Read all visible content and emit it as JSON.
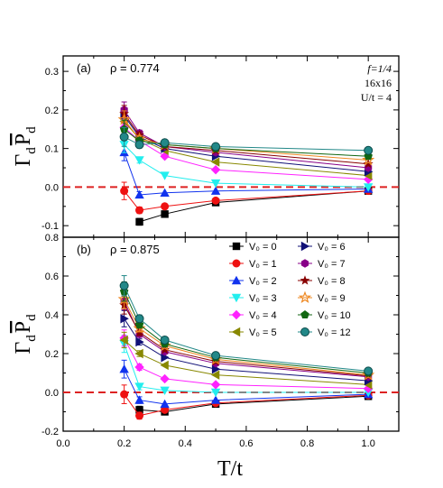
{
  "chart_data": {
    "type": "line",
    "xlabel": "T/t",
    "ylabel": "Γ_d P̄_d",
    "ylabel_main": "Γ",
    "ylabel_sub": "d",
    "ylabel_P": "P",
    "xlim": [
      0.0,
      1.1
    ],
    "x_ticks": [
      "0.0",
      "0.2",
      "0.4",
      "0.6",
      "0.8",
      "1.0"
    ],
    "x": [
      0.2,
      0.25,
      0.333,
      0.5,
      1.0
    ],
    "zero_line_color": "#dd2222",
    "legend_placement": "top-right of panel (b)",
    "legend": [
      {
        "label": "V₀ = 0",
        "marker": "square",
        "color": "#000000"
      },
      {
        "label": "V₀ = 1",
        "marker": "circle",
        "color": "#ee1111"
      },
      {
        "label": "V₀ = 2",
        "marker": "triangle-up",
        "color": "#1133ee"
      },
      {
        "label": "V₀ = 3",
        "marker": "triangle-down",
        "color": "#22eeee"
      },
      {
        "label": "V₀ = 4",
        "marker": "diamond",
        "color": "#ff22ff"
      },
      {
        "label": "V₀ = 5",
        "marker": "triangle-left",
        "color": "#888800"
      },
      {
        "label": "V₀ = 6",
        "marker": "triangle-right",
        "color": "#111177"
      },
      {
        "label": "V₀ = 7",
        "marker": "hexagon",
        "color": "#880088"
      },
      {
        "label": "V₀ = 8",
        "marker": "star",
        "color": "#880000"
      },
      {
        "label": "V₀ = 9",
        "marker": "star-open",
        "color": "#ee8822"
      },
      {
        "label": "V₀ = 10",
        "marker": "pentagon",
        "color": "#116611"
      },
      {
        "label": "V₀ = 12",
        "marker": "circle-half",
        "color": "#228888"
      }
    ],
    "panels": [
      {
        "label": "(a)",
        "rho_text": "ρ = 0.774",
        "notes": [
          "f=1/4",
          "16x16",
          "U/t = 4"
        ],
        "ylim": [
          -0.13,
          0.34
        ],
        "y_ticks": [
          "-0.1",
          "0.0",
          "0.1",
          "0.2",
          "0.3"
        ],
        "y_tick_values": [
          -0.1,
          0.0,
          0.1,
          0.2,
          0.3
        ],
        "series": [
          {
            "values": [
              null,
              -0.09,
              -0.07,
              -0.04,
              -0.01
            ]
          },
          {
            "values": [
              -0.01,
              -0.06,
              -0.05,
              -0.035,
              -0.01
            ]
          },
          {
            "values": [
              0.09,
              -0.02,
              -0.015,
              -0.01,
              -0.005
            ]
          },
          {
            "values": [
              0.11,
              0.07,
              0.03,
              0.01,
              0.0
            ]
          },
          {
            "values": [
              0.155,
              0.12,
              0.08,
              0.045,
              0.02
            ]
          },
          {
            "values": [
              0.17,
              0.125,
              0.095,
              0.065,
              0.03
            ]
          },
          {
            "values": [
              0.185,
              0.13,
              0.1,
              0.08,
              0.04
            ]
          },
          {
            "values": [
              0.2,
              0.14,
              0.105,
              0.09,
              0.05
            ]
          },
          {
            "values": [
              0.19,
              0.135,
              0.105,
              0.095,
              0.06
            ]
          },
          {
            "values": [
              0.175,
              0.125,
              0.11,
              0.1,
              0.07
            ]
          },
          {
            "values": [
              0.15,
              0.12,
              0.11,
              0.1,
              0.08
            ]
          },
          {
            "values": [
              0.13,
              0.11,
              0.115,
              0.105,
              0.095
            ]
          }
        ]
      },
      {
        "label": "(b)",
        "rho_text": "ρ = 0.875",
        "notes": [],
        "ylim": [
          -0.2,
          0.8
        ],
        "y_ticks": [
          "-0.2",
          "0.0",
          "0.2",
          "0.4",
          "0.6",
          "0.8"
        ],
        "y_tick_values": [
          -0.2,
          0.0,
          0.2,
          0.4,
          0.6,
          0.8
        ],
        "series": [
          {
            "values": [
              null,
              -0.09,
              -0.1,
              -0.06,
              -0.02
            ]
          },
          {
            "values": [
              -0.01,
              -0.12,
              -0.09,
              -0.055,
              -0.015
            ]
          },
          {
            "values": [
              0.12,
              -0.04,
              -0.06,
              -0.04,
              -0.01
            ]
          },
          {
            "values": [
              0.25,
              0.03,
              0.01,
              0.0,
              0.0
            ]
          },
          {
            "values": [
              0.28,
              0.13,
              0.07,
              0.04,
              0.02
            ]
          },
          {
            "values": [
              0.27,
              0.2,
              0.14,
              0.09,
              0.04
            ]
          },
          {
            "values": [
              0.38,
              0.26,
              0.18,
              0.12,
              0.06
            ]
          },
          {
            "values": [
              0.47,
              0.3,
              0.21,
              0.15,
              0.08
            ]
          },
          {
            "values": [
              0.45,
              0.31,
              0.22,
              0.16,
              0.085
            ]
          },
          {
            "values": [
              0.48,
              0.33,
              0.24,
              0.17,
              0.09
            ]
          },
          {
            "values": [
              0.52,
              0.35,
              0.25,
              0.18,
              0.1
            ]
          },
          {
            "values": [
              0.55,
              0.38,
              0.27,
              0.19,
              0.11
            ]
          }
        ]
      }
    ]
  }
}
